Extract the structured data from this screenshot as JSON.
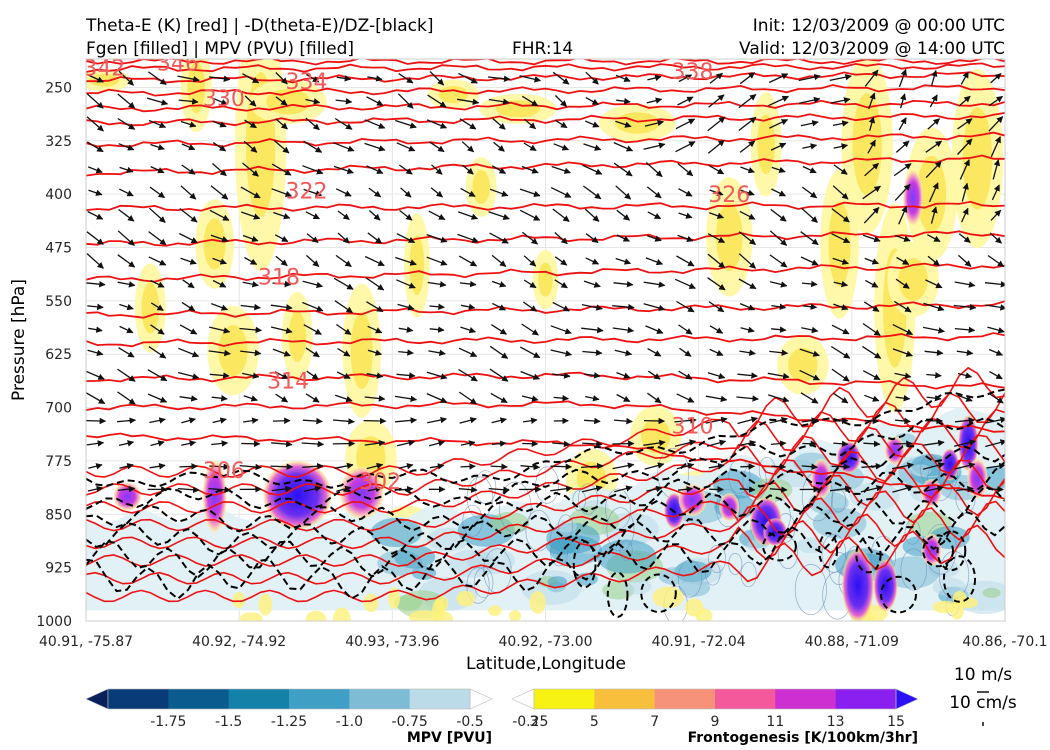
{
  "header": {
    "title_left_1": "Theta-E (K) [red] | -D(theta-E)/DZ-[black]",
    "title_left_2": "Fgen [filled] | MPV (PVU) [filled]",
    "fhr": "FHR:14",
    "init": "Init: 12/03/2009 @ 00:00 UTC",
    "valid": "Valid: 12/03/2009 @ 14:00 UTC"
  },
  "chart_data": {
    "type": "contour",
    "xlabel": "Latitude,Longitude",
    "ylabel": "Pressure [hPa]",
    "x_ticks": [
      "40.91, -75.87",
      "40.92, -74.92",
      "40.93, -73.96",
      "40.92, -73.00",
      "40.91, -72.04",
      "40.88, -71.09",
      "40.86, -70.1"
    ],
    "y_ticks": [
      250,
      325,
      400,
      475,
      550,
      625,
      700,
      775,
      850,
      925,
      1000
    ],
    "ylim": [
      1000,
      210
    ],
    "theta_e_labels": [
      {
        "value": "342",
        "x_frac": 0.02,
        "p": 222
      },
      {
        "value": "346",
        "x_frac": 0.1,
        "p": 215
      },
      {
        "value": "338",
        "x_frac": 0.66,
        "p": 227
      },
      {
        "value": "334",
        "x_frac": 0.24,
        "p": 241
      },
      {
        "value": "330",
        "x_frac": 0.15,
        "p": 265
      },
      {
        "value": "326",
        "x_frac": 0.7,
        "p": 400
      },
      {
        "value": "322",
        "x_frac": 0.24,
        "p": 395
      },
      {
        "value": "318",
        "x_frac": 0.21,
        "p": 516
      },
      {
        "value": "314",
        "x_frac": 0.22,
        "p": 662
      },
      {
        "value": "310",
        "x_frac": 0.66,
        "p": 725
      },
      {
        "value": "306",
        "x_frac": 0.15,
        "p": 788
      },
      {
        "value": "302",
        "x_frac": 0.32,
        "p": 803
      }
    ],
    "mpv_colorbar": {
      "label": "MPV [PVU]",
      "levels": [
        "-1.75",
        "-1.5",
        "-1.25",
        "-1.0",
        "-0.75",
        "-0.5",
        "-0.25"
      ],
      "colors": [
        "#08215c",
        "#083b78",
        "#0b5b8f",
        "#1481a8",
        "#3f9fc4",
        "#7ebcd6",
        "#bcdbe8",
        "#ffffff"
      ]
    },
    "fgen_colorbar": {
      "label": "Frontogenesis [K/100km/3hr]",
      "levels": [
        "3",
        "5",
        "7",
        "9",
        "11",
        "13",
        "15"
      ],
      "colors": [
        "#ffffff",
        "#f7f212",
        "#f8bf3d",
        "#f69279",
        "#f4599c",
        "#cd2fd1",
        "#8a1ff0",
        "#2a10f5"
      ]
    },
    "wind_reference": {
      "horizontal": "10 m/s",
      "vertical": "10 cm/s"
    }
  }
}
